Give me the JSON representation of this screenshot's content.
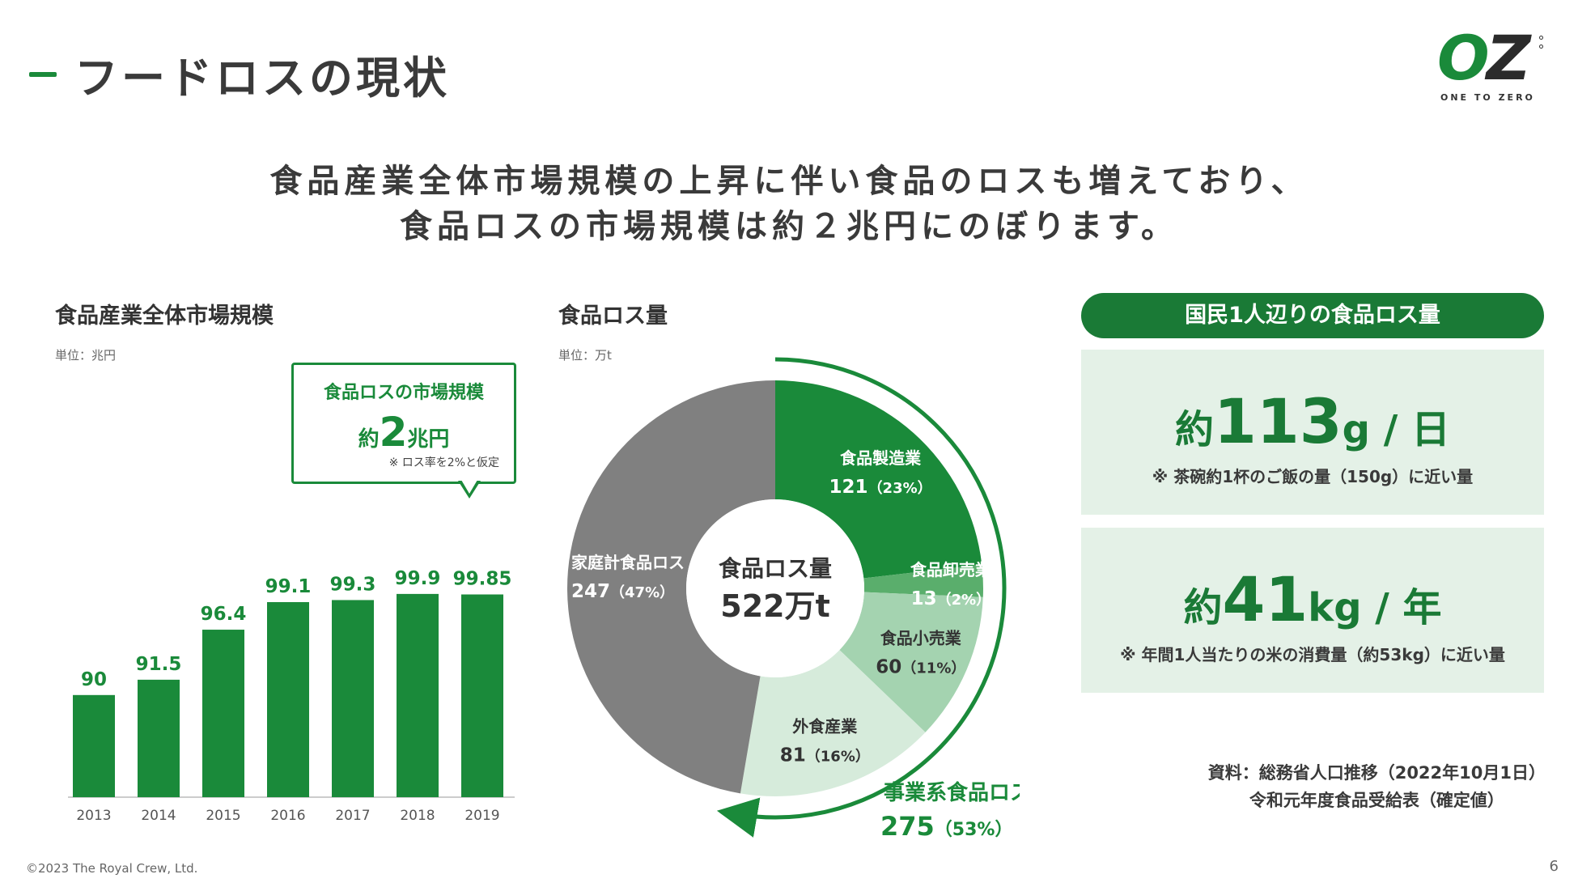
{
  "page": {
    "title": "フードロスの現状",
    "headline_line1": "食品産業全体市場規模の上昇に伴い食品のロスも増えており、",
    "headline_line2": "食品ロスの市場規模は約２兆円にのぼります。",
    "copyright": "©2023 The Royal Crew, Ltd.",
    "page_number": "6"
  },
  "logo": {
    "text_o": "O",
    "text_z": "Z",
    "tagline": "ONE TO ZERO"
  },
  "bar_section": {
    "title": "食品産業全体市場規模",
    "unit": "単位：兆円"
  },
  "callout": {
    "title": "食品ロスの市場規模",
    "value_prefix": "約",
    "value_big": "2",
    "value_suffix": "兆円",
    "note": "※ ロス率を2%と仮定"
  },
  "donut_section": {
    "title": "食品ロス量",
    "unit": "単位：万t",
    "center_label": "食品ロス量",
    "center_value": "522万t",
    "business_label": "事業系食品ロス",
    "business_value": "275",
    "business_pct": "（53%）"
  },
  "per_capita": {
    "header": "国民1人辺りの食品ロス量",
    "daily": {
      "prefix": "約",
      "number": "113",
      "unit": "g",
      "per": " / 日",
      "note": "※ 茶碗約1杯のご飯の量（150g）に近い量"
    },
    "yearly": {
      "prefix": "約",
      "number": "41",
      "unit": "kg",
      "per": " / 年",
      "note": "※ 年間1人当たりの米の消費量（約53kg）に近い量"
    }
  },
  "source": {
    "line1": "資料：総務省人口推移（2022年10月1日）",
    "line2": "令和元年度食品受給表（確定値）"
  },
  "colors": {
    "accent": "#1a8a3a",
    "dark_green": "#1a7a36",
    "household_gray": "#808080",
    "light_green_box": "#e4f1e7"
  },
  "chart_data": [
    {
      "type": "bar",
      "title": "食品産業全体市場規模",
      "categories": [
        "2013",
        "2014",
        "2015",
        "2016",
        "2017",
        "2018",
        "2019"
      ],
      "values": [
        90,
        91.5,
        96.4,
        99.1,
        99.3,
        99.9,
        99.85
      ],
      "value_labels": [
        "90",
        "91.5",
        "96.4",
        "99.1",
        "99.3",
        "99.9",
        "99.85"
      ],
      "ylim": [
        80,
        101
      ],
      "color": "#1a8a3a",
      "grid": false
    },
    {
      "type": "pie",
      "title": "食品ロス量",
      "total": 522,
      "slices": [
        {
          "name": "食品製造業",
          "value": 121,
          "value_label": "121",
          "pct": "（23%）",
          "color": "#1a8a3a"
        },
        {
          "name": "食品卸売業",
          "value": 13,
          "value_label": "13",
          "pct": "（2%）",
          "color": "#5aae6c"
        },
        {
          "name": "食品小売業",
          "value": 60,
          "value_label": "60",
          "pct": "（11%）",
          "color": "#a4d3b0"
        },
        {
          "name": "外食産業",
          "value": 81,
          "value_label": "81",
          "pct": "（16%）",
          "color": "#d6ebdb"
        },
        {
          "name": "家庭計食品ロス",
          "value": 247,
          "value_label": "247",
          "pct": "（47%）",
          "color": "#808080"
        }
      ]
    }
  ]
}
